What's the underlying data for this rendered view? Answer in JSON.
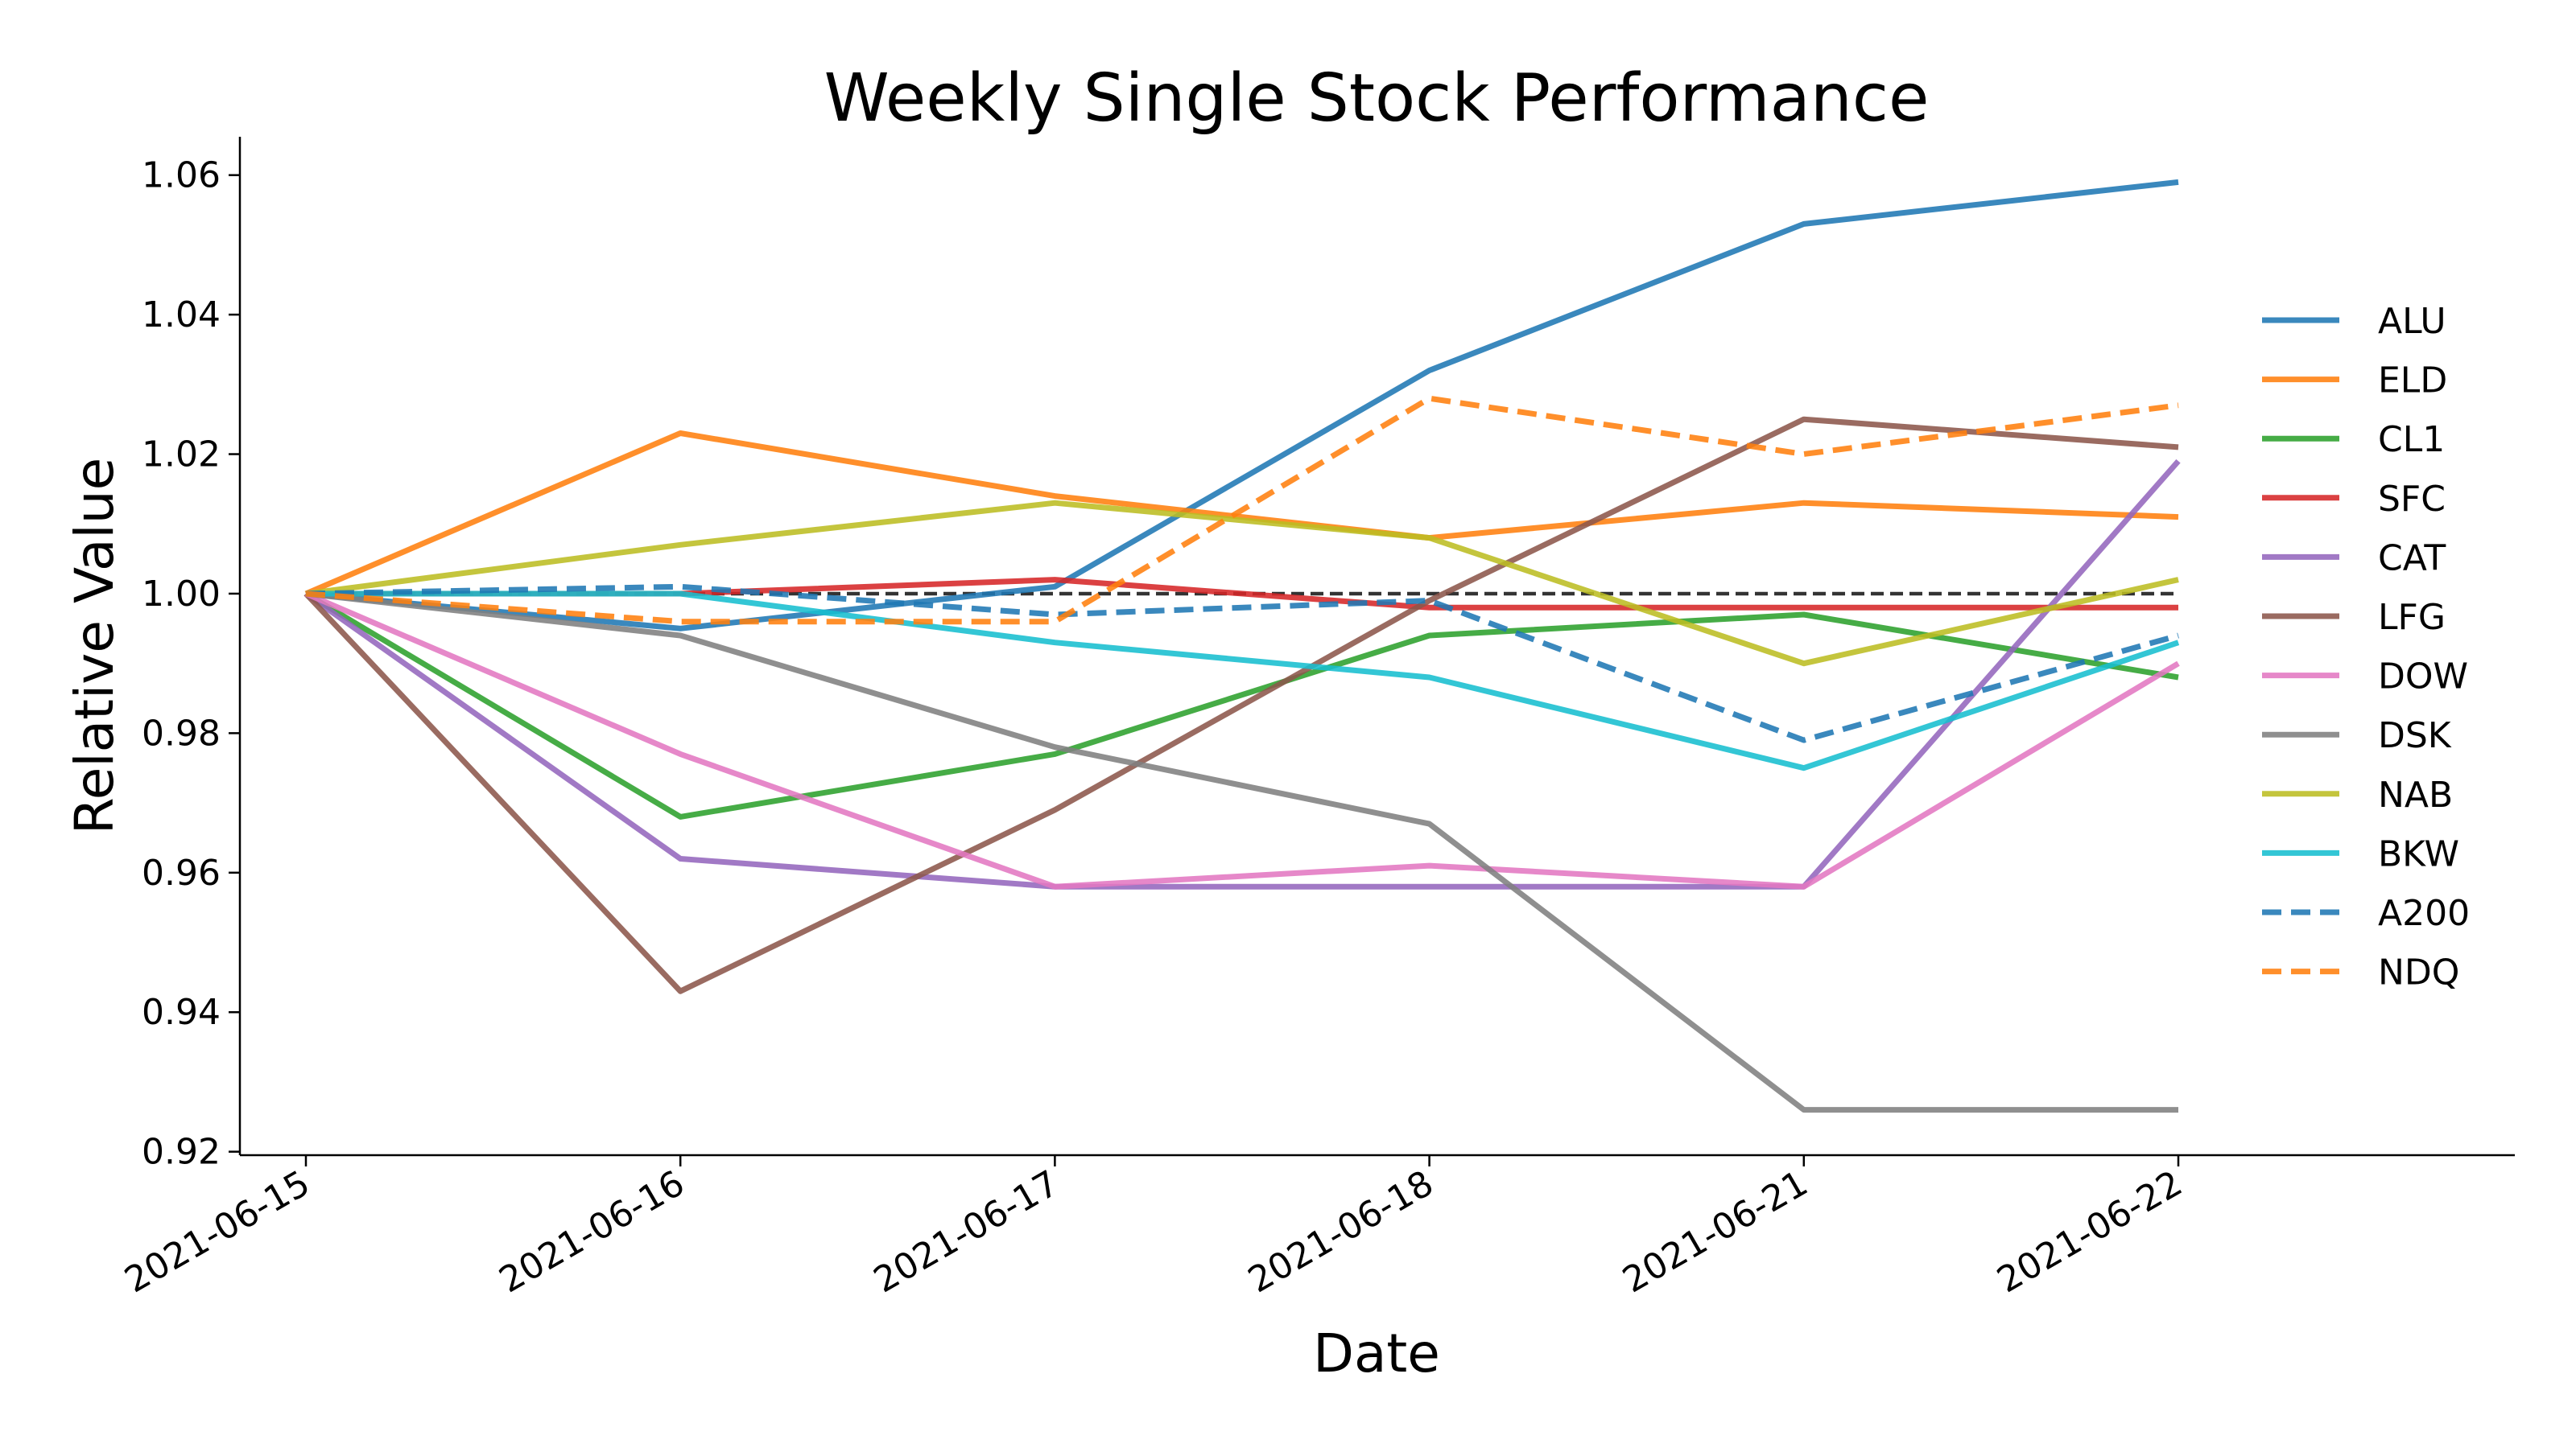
{
  "chart_data": {
    "type": "line",
    "title": "Weekly Single Stock Performance",
    "xlabel": "Date",
    "ylabel": "Relative Value",
    "categories": [
      "2021-06-15",
      "2021-06-16",
      "2021-06-17",
      "2021-06-18",
      "2021-06-21",
      "2021-06-22"
    ],
    "ylim": [
      0.9195,
      1.0655
    ],
    "yticks": [
      "0.92",
      "0.94",
      "0.96",
      "0.98",
      "1.00",
      "1.02",
      "1.04",
      "1.06"
    ],
    "grid": false,
    "legend_position": "right",
    "reference_line": {
      "value": 1.0,
      "color": "#333333",
      "style": "dashed"
    },
    "series": [
      {
        "name": "ALU",
        "color": "#1f77b4",
        "style": "solid",
        "values": [
          1.0,
          0.995,
          1.001,
          1.032,
          1.053,
          1.059
        ]
      },
      {
        "name": "ELD",
        "color": "#ff7f0e",
        "style": "solid",
        "values": [
          1.0,
          1.023,
          1.014,
          1.008,
          1.013,
          1.011
        ]
      },
      {
        "name": "CL1",
        "color": "#2ca02c",
        "style": "solid",
        "values": [
          1.0,
          0.968,
          0.977,
          0.994,
          0.997,
          0.988
        ]
      },
      {
        "name": "SFC",
        "color": "#d62728",
        "style": "solid",
        "values": [
          1.0,
          1.0,
          1.002,
          0.998,
          0.998,
          0.998
        ]
      },
      {
        "name": "CAT",
        "color": "#9467bd",
        "style": "solid",
        "values": [
          1.0,
          0.962,
          0.958,
          0.958,
          0.958,
          1.019
        ]
      },
      {
        "name": "LFG",
        "color": "#8c564b",
        "style": "solid",
        "values": [
          1.0,
          0.943,
          0.969,
          0.999,
          1.025,
          1.021
        ]
      },
      {
        "name": "DOW",
        "color": "#e377c2",
        "style": "solid",
        "values": [
          1.0,
          0.977,
          0.958,
          0.961,
          0.958,
          0.99
        ]
      },
      {
        "name": "DSK",
        "color": "#7f7f7f",
        "style": "solid",
        "values": [
          1.0,
          0.994,
          0.978,
          0.967,
          0.926,
          0.926
        ]
      },
      {
        "name": "NAB",
        "color": "#bcbd22",
        "style": "solid",
        "values": [
          1.0,
          1.007,
          1.013,
          1.008,
          0.99,
          1.002
        ]
      },
      {
        "name": "BKW",
        "color": "#17becf",
        "style": "solid",
        "values": [
          1.0,
          1.0,
          0.993,
          0.988,
          0.975,
          0.993
        ]
      },
      {
        "name": "A200",
        "color": "#1f77b4",
        "style": "dashed",
        "values": [
          1.0,
          1.001,
          0.997,
          0.999,
          0.979,
          0.994
        ]
      },
      {
        "name": "NDQ",
        "color": "#ff7f0e",
        "style": "dashed",
        "values": [
          1.0,
          0.996,
          0.996,
          1.028,
          1.02,
          1.027
        ]
      }
    ]
  }
}
